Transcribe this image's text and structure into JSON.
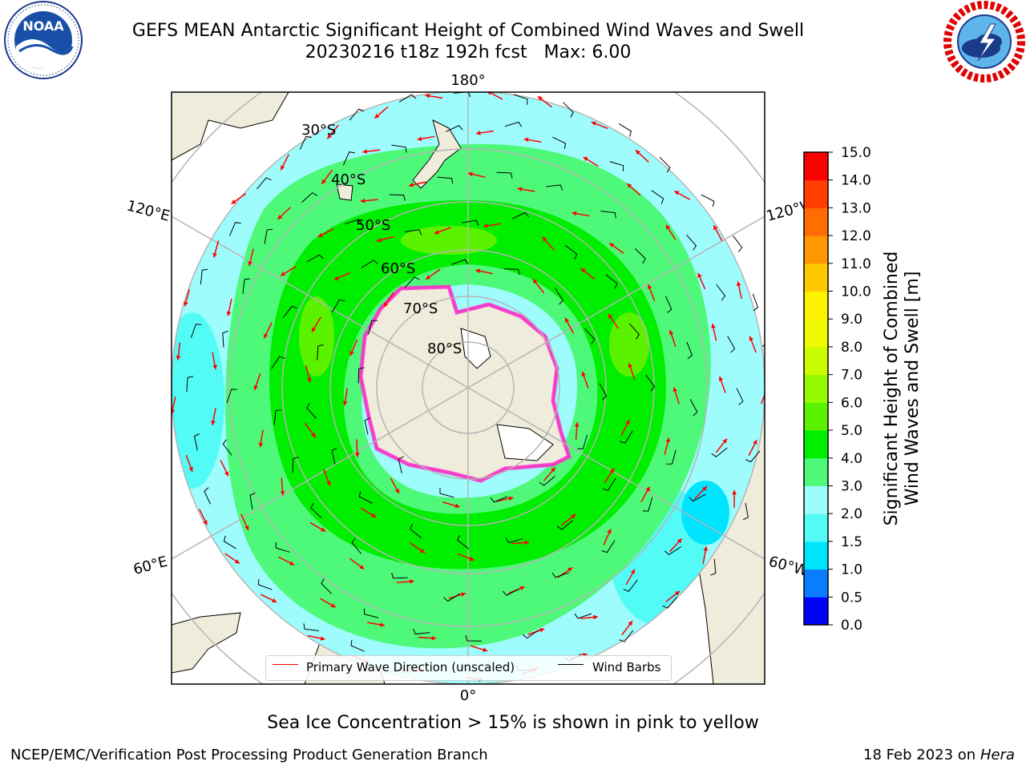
{
  "header": {
    "title_line1": "GEFS MEAN Antarctic Significant Height of Combined Wind Waves and Swell",
    "title_line2": "20230216 t18z 192h fcst   Max: 6.00"
  },
  "logos": {
    "left": "NOAA",
    "left_icon": "noaa-logo-icon",
    "right_icon": "nws-logo-icon"
  },
  "map": {
    "projection": "south-polar-stereographic",
    "lon_labels": {
      "top": "180°",
      "bottom": "0°",
      "left_upper": "120°E",
      "left_lower": "60°E",
      "right_upper": "120°W",
      "right_lower": "60°W"
    },
    "lat_labels": [
      "30°S",
      "40°S",
      "50°S",
      "60°S",
      "70°S",
      "80°S"
    ],
    "colors": {
      "land": "#efecdb",
      "ice_shelf": "#ffffff",
      "grid": "#b5b5b5"
    }
  },
  "legend": {
    "placement": "lower-center",
    "items": [
      {
        "label": "Primary Wave Direction (unscaled)",
        "color": "#ff0000"
      },
      {
        "label": "Wind Barbs",
        "color": "#000000"
      }
    ]
  },
  "colorbar": {
    "label_line1": "Significant Height of Combined",
    "label_line2": "Wind Waves and Swell [m]",
    "ticks": [
      "0.0",
      "0.5",
      "1.0",
      "1.5",
      "2.0",
      "3.0",
      "4.0",
      "5.0",
      "6.0",
      "7.0",
      "8.0",
      "9.0",
      "10.0",
      "11.0",
      "12.0",
      "13.0",
      "14.0",
      "15.0"
    ],
    "colors": [
      "#0000ff",
      "#0a7cff",
      "#00e5ff",
      "#53fbf6",
      "#9efcfd",
      "#4ef97a",
      "#00ee00",
      "#5bf200",
      "#94fa00",
      "#cafc00",
      "#eefa00",
      "#fff200",
      "#ffc800",
      "#ff9800",
      "#ff6d00",
      "#ff3e00",
      "#ff0000"
    ]
  },
  "footer": {
    "note": "Sea Ice Concentration > 15% is shown in pink to yellow",
    "credit": "NCEP/EMC/Verification Post Processing Product Generation Branch",
    "date": "18 Feb 2023",
    "date_on": "on",
    "host": "Hera"
  }
}
